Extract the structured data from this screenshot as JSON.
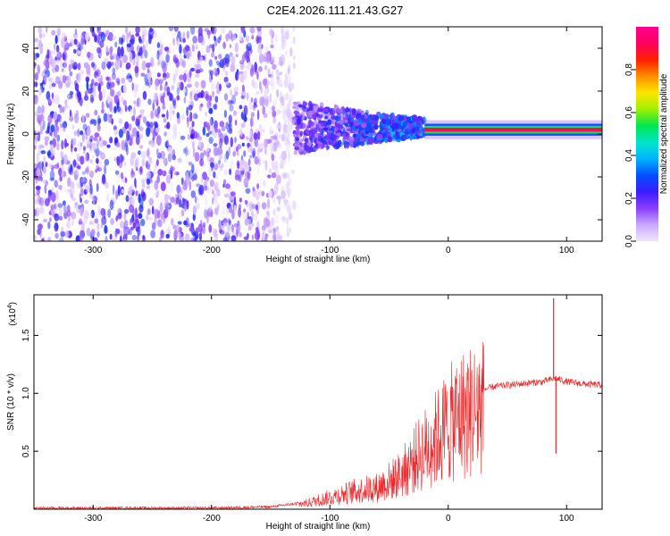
{
  "title": "C2E4.2026.111.21.43.G27",
  "chart_data": [
    {
      "type": "heatmap",
      "xlabel": "Height of straight line (km)",
      "ylabel": "Frequency (Hz)",
      "xlim": [
        -350,
        130
      ],
      "ylim": [
        -50,
        50
      ],
      "x_ticks": [
        -300,
        -200,
        -100,
        0,
        100
      ],
      "y_ticks": [
        -40,
        -20,
        0,
        20,
        40
      ],
      "colorbar": {
        "label": "Normalized spectral amplitude",
        "range": [
          0,
          1
        ],
        "ticks": [
          0.0,
          0.2,
          0.4,
          0.6,
          0.8
        ],
        "colors": [
          "#f0e6ff",
          "#c9a8ff",
          "#8a3cff",
          "#3a1cff",
          "#0050ff",
          "#00b4ff",
          "#00e6c8",
          "#00e650",
          "#a0f000",
          "#ffe600",
          "#ff8c00",
          "#ff2000",
          "#ff0060",
          "#ff0090"
        ]
      },
      "features": [
        {
          "name": "noise",
          "x_range": [
            -350,
            -130
          ],
          "y_range": [
            -50,
            50
          ],
          "amplitude": 0.15
        },
        {
          "name": "transition",
          "x_range": [
            -130,
            -20
          ],
          "y_center": 3,
          "y_halfwidth_start": 12,
          "y_halfwidth_end": 4,
          "amplitude": 0.3
        },
        {
          "name": "carrier",
          "x_range": [
            -20,
            130
          ],
          "y_center": 2,
          "y_halfwidth": 2,
          "amplitude": 0.92
        }
      ]
    },
    {
      "type": "line",
      "xlabel": "Height of straight line (km)",
      "ylabel": "SNR (10 * v/v)",
      "y_multiplier": "(x10",
      "y_multiplier_exp": "4",
      "y_multiplier_close": ")",
      "xlim": [
        -350,
        130
      ],
      "ylim": [
        0,
        1.85
      ],
      "x_ticks": [
        -300,
        -200,
        -100,
        0,
        100
      ],
      "y_ticks": [
        0.5,
        1.0,
        1.5
      ],
      "color": "#e8282a",
      "envelope": [
        {
          "x": -350,
          "y": 0.01
        },
        {
          "x": -200,
          "y": 0.01
        },
        {
          "x": -150,
          "y": 0.02
        },
        {
          "x": -120,
          "y": 0.06
        },
        {
          "x": -100,
          "y": 0.12
        },
        {
          "x": -80,
          "y": 0.18
        },
        {
          "x": -60,
          "y": 0.22
        },
        {
          "x": -40,
          "y": 0.35
        },
        {
          "x": -25,
          "y": 0.55
        },
        {
          "x": -10,
          "y": 0.72
        },
        {
          "x": 0,
          "y": 0.85
        },
        {
          "x": 10,
          "y": 0.95
        },
        {
          "x": 25,
          "y": 1.02
        },
        {
          "x": 40,
          "y": 1.06
        },
        {
          "x": 60,
          "y": 1.08
        },
        {
          "x": 80,
          "y": 1.1
        },
        {
          "x": 90,
          "y": 1.13
        },
        {
          "x": 100,
          "y": 1.1
        },
        {
          "x": 115,
          "y": 1.08
        },
        {
          "x": 130,
          "y": 1.07
        }
      ],
      "spikes": [
        {
          "x": 89,
          "y": 1.82
        },
        {
          "x": 91,
          "y": 0.48
        }
      ]
    }
  ]
}
